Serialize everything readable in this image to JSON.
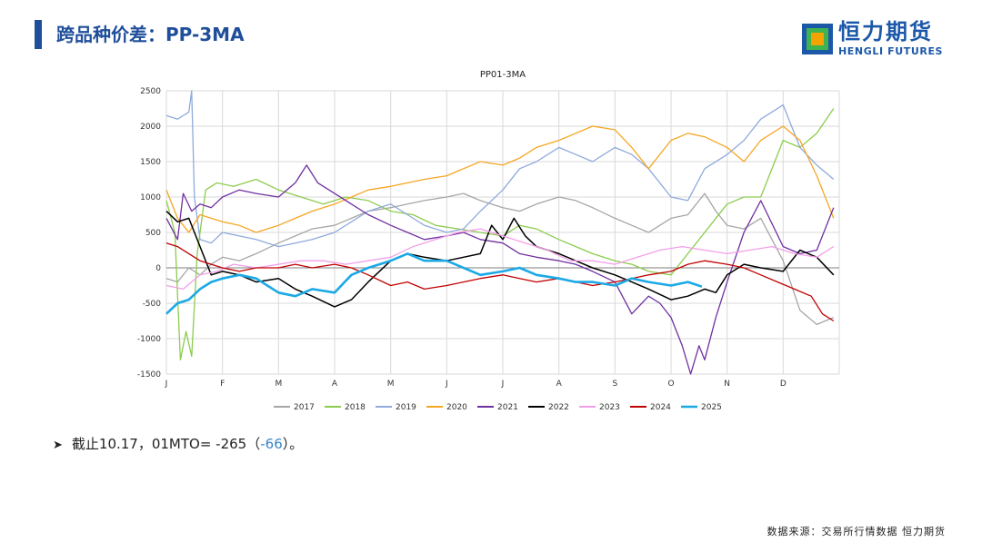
{
  "header": {
    "title": "跨品种价差：PP-3MA",
    "logo_cn": "恒力期货",
    "logo_en": "HENGLI FUTURES",
    "accent_color": "#1f4e9b"
  },
  "note": {
    "prefix": "截止10.17，01MTO= -265（",
    "delta": "-66",
    "suffix": "）。",
    "bullet_icon": "arrow-right-icon"
  },
  "source": "数据来源：交易所行情数据 恒力期货",
  "chart_data": {
    "type": "line",
    "title": "PP01-3MA",
    "xlabel": "",
    "ylabel": "",
    "ylim": [
      -1500,
      2500
    ],
    "yticks": [
      -1500,
      -1000,
      -500,
      0,
      500,
      1000,
      1500,
      2000,
      2500
    ],
    "xrange": [
      0,
      12
    ],
    "month_labels": [
      "J",
      "F",
      "M",
      "A",
      "M",
      "J",
      "J",
      "A",
      "S",
      "O",
      "N",
      "D"
    ],
    "grid": true,
    "legend_position": "bottom",
    "series": [
      {
        "name": "2017",
        "color": "#a6a6a6",
        "width": 1.3,
        "x": [
          0,
          0.2,
          0.4,
          0.6,
          0.8,
          1.0,
          1.3,
          1.6,
          2.0,
          2.3,
          2.6,
          3.0,
          3.3,
          3.6,
          4.0,
          4.3,
          4.6,
          5.0,
          5.3,
          5.6,
          6.0,
          6.3,
          6.6,
          7.0,
          7.3,
          7.6,
          8.0,
          8.3,
          8.6,
          9.0,
          9.3,
          9.6,
          9.8,
          10.0,
          10.3,
          10.6,
          11.0,
          11.3,
          11.6,
          11.9
        ],
        "y": [
          -150,
          -200,
          0,
          -100,
          50,
          150,
          100,
          200,
          350,
          450,
          550,
          600,
          700,
          800,
          850,
          900,
          950,
          1000,
          1050,
          950,
          850,
          800,
          900,
          1000,
          950,
          850,
          700,
          600,
          500,
          700,
          750,
          1050,
          800,
          600,
          550,
          700,
          100,
          -600,
          -800,
          -700
        ]
      },
      {
        "name": "2018",
        "color": "#8ccc4e",
        "width": 1.3,
        "x": [
          0,
          0.15,
          0.25,
          0.35,
          0.45,
          0.55,
          0.7,
          0.9,
          1.2,
          1.6,
          2.0,
          2.4,
          2.8,
          3.2,
          3.6,
          4.0,
          4.4,
          4.8,
          5.2,
          5.6,
          6.0,
          6.3,
          6.6,
          7.0,
          7.3,
          7.6,
          8.0,
          8.3,
          8.6,
          9.0,
          9.3,
          9.6,
          10.0,
          10.3,
          10.6,
          11.0,
          11.3,
          11.6,
          11.9
        ],
        "y": [
          950,
          500,
          -1300,
          -900,
          -1250,
          200,
          1100,
          1200,
          1150,
          1250,
          1100,
          1000,
          900,
          1000,
          950,
          800,
          750,
          600,
          550,
          500,
          450,
          600,
          550,
          400,
          300,
          200,
          100,
          50,
          -50,
          -100,
          200,
          500,
          900,
          1000,
          1000,
          1800,
          1700,
          1900,
          2250
        ]
      },
      {
        "name": "2019",
        "color": "#8faadc",
        "width": 1.3,
        "x": [
          0,
          0.2,
          0.4,
          0.45,
          0.5,
          0.6,
          0.8,
          1.0,
          1.3,
          1.6,
          2.0,
          2.3,
          2.6,
          3.0,
          3.3,
          3.6,
          4.0,
          4.3,
          4.6,
          5.0,
          5.3,
          5.6,
          6.0,
          6.3,
          6.6,
          7.0,
          7.3,
          7.6,
          8.0,
          8.3,
          8.6,
          9.0,
          9.3,
          9.6,
          10.0,
          10.3,
          10.6,
          11.0,
          11.3,
          11.6,
          11.9
        ],
        "y": [
          2150,
          2100,
          2200,
          2500,
          1000,
          400,
          350,
          500,
          450,
          400,
          300,
          350,
          400,
          500,
          650,
          800,
          900,
          750,
          600,
          500,
          550,
          800,
          1100,
          1400,
          1500,
          1700,
          1600,
          1500,
          1700,
          1600,
          1400,
          1000,
          950,
          1400,
          1600,
          1800,
          2100,
          2300,
          1700,
          1450,
          1250
        ]
      },
      {
        "name": "2020",
        "color": "#f5a623",
        "width": 1.3,
        "x": [
          0,
          0.2,
          0.4,
          0.6,
          0.8,
          1.0,
          1.3,
          1.6,
          2.0,
          2.3,
          2.6,
          3.0,
          3.3,
          3.6,
          4.0,
          4.3,
          4.6,
          5.0,
          5.3,
          5.6,
          6.0,
          6.3,
          6.6,
          7.0,
          7.3,
          7.6,
          8.0,
          8.3,
          8.6,
          9.0,
          9.3,
          9.6,
          10.0,
          10.3,
          10.6,
          11.0,
          11.3,
          11.6,
          11.9
        ],
        "y": [
          1100,
          700,
          500,
          750,
          700,
          650,
          600,
          500,
          600,
          700,
          800,
          900,
          1000,
          1100,
          1150,
          1200,
          1250,
          1300,
          1400,
          1500,
          1450,
          1550,
          1700,
          1800,
          1900,
          2000,
          1950,
          1700,
          1400,
          1800,
          1900,
          1850,
          1700,
          1500,
          1800,
          2000,
          1800,
          1300,
          700
        ]
      },
      {
        "name": "2021",
        "color": "#7030a0",
        "width": 1.3,
        "x": [
          0,
          0.2,
          0.3,
          0.45,
          0.6,
          0.8,
          1.0,
          1.3,
          1.6,
          2.0,
          2.3,
          2.5,
          2.7,
          3.0,
          3.3,
          3.6,
          4.0,
          4.3,
          4.6,
          5.0,
          5.3,
          5.6,
          6.0,
          6.3,
          6.6,
          7.0,
          7.3,
          7.6,
          8.0,
          8.3,
          8.6,
          8.8,
          9.0,
          9.2,
          9.35,
          9.5,
          9.6,
          9.8,
          10.0,
          10.3,
          10.6,
          11.0,
          11.3,
          11.6,
          11.9
        ],
        "y": [
          700,
          400,
          1050,
          800,
          900,
          850,
          1000,
          1100,
          1050,
          1000,
          1200,
          1450,
          1200,
          1050,
          900,
          750,
          600,
          500,
          400,
          450,
          500,
          400,
          350,
          200,
          150,
          100,
          50,
          -50,
          -200,
          -650,
          -400,
          -500,
          -700,
          -1100,
          -1500,
          -1100,
          -1300,
          -700,
          -200,
          500,
          950,
          300,
          200,
          250,
          850
        ]
      },
      {
        "name": "2022",
        "color": "#000000",
        "width": 1.5,
        "x": [
          0,
          0.2,
          0.4,
          0.6,
          0.8,
          1.0,
          1.3,
          1.6,
          2.0,
          2.3,
          2.6,
          3.0,
          3.3,
          3.6,
          4.0,
          4.3,
          4.6,
          5.0,
          5.3,
          5.6,
          5.8,
          6.0,
          6.2,
          6.4,
          6.6,
          7.0,
          7.3,
          7.6,
          8.0,
          8.3,
          8.6,
          9.0,
          9.3,
          9.6,
          9.8,
          10.0,
          10.3,
          10.6,
          11.0,
          11.3,
          11.6,
          11.9
        ],
        "y": [
          800,
          650,
          700,
          300,
          -100,
          -50,
          -100,
          -200,
          -150,
          -300,
          -400,
          -550,
          -450,
          -200,
          100,
          200,
          150,
          100,
          150,
          200,
          600,
          400,
          700,
          450,
          300,
          200,
          100,
          0,
          -100,
          -200,
          -300,
          -450,
          -400,
          -300,
          -350,
          -100,
          50,
          0,
          -50,
          250,
          150,
          -100
        ]
      },
      {
        "name": "2023",
        "color": "#f39fe8",
        "width": 1.3,
        "x": [
          0,
          0.3,
          0.6,
          0.9,
          1.2,
          1.6,
          2.0,
          2.4,
          2.8,
          3.2,
          3.6,
          4.0,
          4.4,
          4.8,
          5.2,
          5.6,
          6.0,
          6.4,
          6.8,
          7.2,
          7.6,
          8.0,
          8.4,
          8.8,
          9.2,
          9.6,
          10.0,
          10.4,
          10.8,
          11.2,
          11.6,
          11.9
        ],
        "y": [
          -250,
          -300,
          -100,
          -50,
          50,
          0,
          50,
          100,
          100,
          50,
          100,
          150,
          300,
          400,
          500,
          550,
          450,
          350,
          250,
          100,
          100,
          50,
          150,
          250,
          300,
          250,
          200,
          250,
          300,
          200,
          150,
          300
        ]
      },
      {
        "name": "2024",
        "color": "#c00000",
        "width": 1.3,
        "x": [
          0,
          0.2,
          0.4,
          0.6,
          0.8,
          1.0,
          1.3,
          1.6,
          2.0,
          2.3,
          2.6,
          3.0,
          3.3,
          3.6,
          4.0,
          4.3,
          4.6,
          5.0,
          5.3,
          5.6,
          6.0,
          6.3,
          6.6,
          7.0,
          7.3,
          7.6,
          8.0,
          8.3,
          8.6,
          9.0,
          9.3,
          9.6,
          10.0,
          10.3,
          10.6,
          10.9,
          11.2,
          11.5,
          11.7,
          11.9
        ],
        "y": [
          350,
          300,
          200,
          100,
          50,
          0,
          -50,
          0,
          0,
          50,
          0,
          50,
          0,
          -100,
          -250,
          -200,
          -300,
          -250,
          -200,
          -150,
          -100,
          -150,
          -200,
          -150,
          -200,
          -250,
          -200,
          -150,
          -100,
          -50,
          50,
          100,
          50,
          0,
          -100,
          -200,
          -300,
          -400,
          -650,
          -750
        ]
      },
      {
        "name": "2025",
        "color": "#1ba9e6",
        "width": 2.6,
        "x": [
          0,
          0.2,
          0.4,
          0.6,
          0.8,
          1.0,
          1.3,
          1.6,
          1.8,
          2.0,
          2.3,
          2.6,
          3.0,
          3.3,
          3.6,
          4.0,
          4.3,
          4.6,
          5.0,
          5.3,
          5.6,
          6.0,
          6.3,
          6.6,
          7.0,
          7.3,
          7.6,
          8.0,
          8.3,
          8.6,
          9.0,
          9.3,
          9.55
        ],
        "y": [
          -650,
          -500,
          -450,
          -300,
          -200,
          -150,
          -100,
          -150,
          -250,
          -350,
          -400,
          -300,
          -350,
          -100,
          0,
          100,
          200,
          100,
          100,
          0,
          -100,
          -50,
          0,
          -100,
          -150,
          -200,
          -200,
          -250,
          -150,
          -200,
          -250,
          -200,
          -265
        ]
      }
    ]
  }
}
